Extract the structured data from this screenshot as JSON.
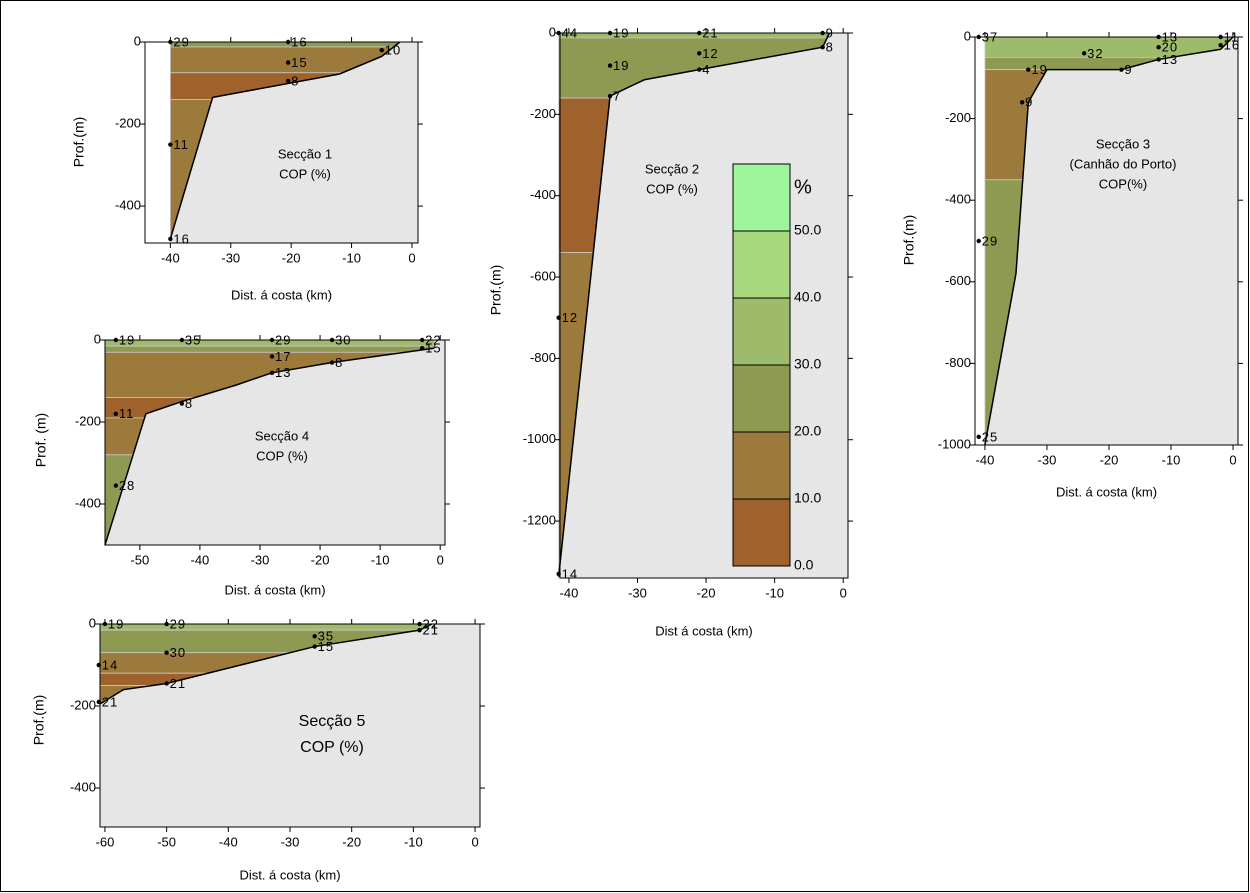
{
  "chart_data": [
    {
      "type": "section",
      "title": [
        "Secção 1",
        "COP (%)"
      ],
      "xlabel": "Dist. á costa (km)",
      "ylabel": "Prof.(m)",
      "xlim": [
        -44.2,
        1
      ],
      "xticks": [
        -40,
        -30,
        -20,
        -10,
        0
      ],
      "ylim": [
        -490,
        0
      ],
      "yticks": [
        0,
        -200,
        -400
      ],
      "stations": {
        "x": [
          -40,
          -40,
          -40,
          -20.5,
          -20.5,
          -20.5,
          -5
        ],
        "depth": [
          0,
          -250,
          -480,
          0,
          -50,
          -95,
          -20
        ],
        "values": [
          29,
          11,
          16,
          16,
          15,
          8,
          10
        ]
      },
      "seafloor": {
        "x": [
          -40,
          -33,
          -12,
          -5,
          -2
        ],
        "depth": [
          -480,
          -135,
          -78,
          -35,
          0
        ]
      },
      "layers": [
        {
          "level": 20,
          "depth": [
            0,
            -12
          ]
        },
        {
          "level": 10,
          "depth": [
            -12,
            -75
          ]
        },
        {
          "level": 0,
          "depth": [
            -75,
            -140
          ]
        },
        {
          "level": 10,
          "depth": [
            -140,
            -490
          ]
        }
      ]
    },
    {
      "type": "section",
      "title": [
        "Secção 2",
        "COP (%)"
      ],
      "xlabel": "Dist á costa (km)",
      "ylabel": "Prof.(m)",
      "xlim": [
        -41.3,
        0.7
      ],
      "xticks": [
        -40,
        -30,
        -20,
        -10,
        0
      ],
      "ylim": [
        -1340,
        0
      ],
      "yticks": [
        0,
        -200,
        -400,
        -600,
        -800,
        -1000,
        -1200
      ],
      "stations": {
        "x": [
          -41.5,
          -34,
          -34,
          -34,
          -21,
          -21,
          -21,
          -3,
          -3,
          -41.5,
          -41.5
        ],
        "depth": [
          0,
          0,
          -80,
          -155,
          0,
          -50,
          -90,
          0,
          -35,
          -700,
          -1330
        ],
        "values": [
          44,
          19,
          19,
          7,
          21,
          12,
          4,
          9,
          8,
          12,
          14
        ]
      },
      "seafloor": {
        "x": [
          -41.5,
          -34,
          -29,
          -21,
          -3,
          -2
        ],
        "depth": [
          -1337,
          -155,
          -115,
          -90,
          -35,
          0
        ]
      },
      "layers": [
        {
          "level": 30,
          "depth": [
            0,
            -12
          ]
        },
        {
          "level": 20,
          "depth": [
            -12,
            -160
          ]
        },
        {
          "level": 0,
          "depth": [
            -160,
            -540
          ]
        },
        {
          "level": 10,
          "depth": [
            -540,
            -1340
          ]
        }
      ]
    },
    {
      "type": "section",
      "title": [
        "Secção 3",
        "(Canhão do Porto)",
        "COP(%)"
      ],
      "xlabel": "Dist. á costa (km)",
      "ylabel": "Prof.(m)",
      "xlim": [
        -41.6,
        0.8
      ],
      "xticks": [
        -40,
        -30,
        -20,
        -10,
        0
      ],
      "ylim": [
        -1000,
        0
      ],
      "yticks": [
        0,
        -200,
        -400,
        -600,
        -800,
        -1000
      ],
      "stations": {
        "x": [
          -41,
          -33,
          -34,
          -41,
          -41,
          -24,
          -18,
          -12,
          -12,
          -12,
          -2,
          -2
        ],
        "depth": [
          0,
          -80,
          -160,
          -500,
          -980,
          -40,
          -80,
          0,
          -25,
          -55,
          0,
          -20
        ],
        "values": [
          37,
          19,
          9,
          29,
          25,
          32,
          9,
          13,
          20,
          13,
          11,
          16
        ]
      },
      "seafloor": {
        "x": [
          -40,
          -35,
          -33,
          -30,
          -18,
          -12,
          -2,
          0
        ],
        "depth": [
          -1000,
          -580,
          -160,
          -80,
          -80,
          -55,
          -30,
          0
        ]
      },
      "layers": [
        {
          "level": 30,
          "depth": [
            0,
            -50
          ]
        },
        {
          "level": 20,
          "depth": [
            -50,
            -80
          ]
        },
        {
          "level": 10,
          "depth": [
            -80,
            -350
          ]
        },
        {
          "level": 20,
          "depth": [
            -350,
            -1000
          ]
        }
      ]
    },
    {
      "type": "section",
      "title": [
        "Secção 4",
        "COP (%)"
      ],
      "xlabel": "Dist. á costa (km)",
      "ylabel": "Prof. (m)",
      "xlim": [
        -55.8,
        0.8
      ],
      "xticks": [
        -50,
        -40,
        -30,
        -20,
        -10,
        0
      ],
      "ylim": [
        -500,
        0
      ],
      "yticks": [
        0,
        -200,
        -400
      ],
      "stations": {
        "x": [
          -54,
          -43,
          -28,
          -28,
          -28,
          -18,
          -18,
          -3,
          -3,
          -54,
          -54,
          -43
        ],
        "depth": [
          0,
          0,
          0,
          -40,
          -80,
          0,
          -55,
          0,
          -20,
          -180,
          -355,
          -155
        ],
        "values": [
          19,
          35,
          29,
          17,
          13,
          30,
          8,
          22,
          15,
          11,
          28,
          8
        ]
      },
      "seafloor": {
        "x": [
          -55.8,
          -49,
          -43,
          -34,
          -28,
          -18,
          -1
        ],
        "depth": [
          -500,
          -180,
          -150,
          -110,
          -80,
          -55,
          -20
        ]
      },
      "layers": [
        {
          "level": 30,
          "depth": [
            0,
            -15
          ]
        },
        {
          "level": 20,
          "depth": [
            -15,
            -30
          ]
        },
        {
          "level": 10,
          "depth": [
            -30,
            -140
          ]
        },
        {
          "level": 0,
          "depth": [
            -140,
            -190
          ]
        },
        {
          "level": 10,
          "depth": [
            -190,
            -280
          ]
        },
        {
          "level": 20,
          "depth": [
            -280,
            -500
          ]
        }
      ]
    },
    {
      "type": "section",
      "title": [
        "Secção 5",
        "COP (%)"
      ],
      "xlabel": "Dist. á costa (km)",
      "ylabel": "Prof.(m)",
      "xlim": [
        -60.8,
        0.8
      ],
      "xticks": [
        -60,
        -50,
        -40,
        -30,
        -20,
        -10,
        0
      ],
      "ylim": [
        -495,
        0
      ],
      "yticks": [
        0,
        -200,
        -400
      ],
      "stations": {
        "x": [
          -60,
          -50,
          -50,
          -50,
          -61,
          -61,
          -26,
          -26,
          -9,
          -9
        ],
        "depth": [
          0,
          0,
          -70,
          -145,
          -100,
          -190,
          -30,
          -55,
          0,
          -15
        ],
        "values": [
          19,
          29,
          30,
          21,
          14,
          21,
          35,
          15,
          22,
          21
        ]
      },
      "seafloor": {
        "x": [
          -60.8,
          -57,
          -50,
          -26,
          -9,
          -7
        ],
        "depth": [
          -195,
          -160,
          -145,
          -55,
          -15,
          0
        ]
      },
      "layers": [
        {
          "level": 30,
          "depth": [
            0,
            -15
          ]
        },
        {
          "level": 20,
          "depth": [
            -15,
            -70
          ]
        },
        {
          "level": 10,
          "depth": [
            -70,
            -120
          ]
        },
        {
          "level": 0,
          "depth": [
            -120,
            -150
          ]
        },
        {
          "level": 10,
          "depth": [
            -150,
            -200
          ]
        }
      ]
    },
    {
      "type": "colorbar",
      "title": "%",
      "levels": [
        0,
        10,
        20,
        30,
        40,
        50,
        60
      ],
      "colors": [
        "#a0622d",
        "#9c7a3c",
        "#8e9a52",
        "#9dbb6a",
        "#a9d77d",
        "#9ef59b"
      ],
      "ylim": [
        0,
        60
      ],
      "yticks": [
        {
          "value": 0,
          "label": "0.0"
        },
        {
          "value": 10,
          "label": "10.0"
        },
        {
          "value": 20,
          "label": "20.0"
        },
        {
          "value": 30,
          "label": "30.0"
        },
        {
          "value": 40,
          "label": "40.0"
        },
        {
          "value": 50,
          "label": "50.0"
        }
      ]
    }
  ]
}
